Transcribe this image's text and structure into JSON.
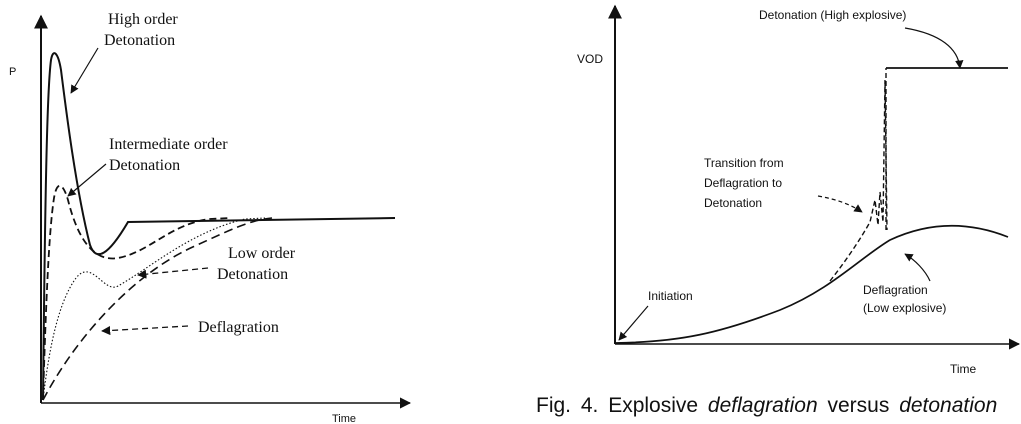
{
  "left_diagram": {
    "y_axis_label": "P",
    "x_axis_label": "Time",
    "curves": [
      {
        "id": "high",
        "label_lines": [
          "High order",
          "Detonation"
        ],
        "style": "solid"
      },
      {
        "id": "intermediate",
        "label_lines": [
          "Intermediate order",
          "Detonation"
        ],
        "style": "dashed"
      },
      {
        "id": "low",
        "label_lines": [
          "Low order",
          "Detonation"
        ],
        "style": "dotted"
      },
      {
        "id": "deflagration",
        "label_lines": [
          "Deflagration"
        ],
        "style": "dashed"
      }
    ]
  },
  "right_diagram": {
    "y_axis_label": "VOD",
    "x_axis_label": "Time",
    "annotations": {
      "detonation": "Detonation (High explosive)",
      "transition_lines": [
        "Transition from",
        "Deflagration to",
        "Detonation"
      ],
      "initiation": "Initiation",
      "deflagration_lines": [
        "Deflagration",
        "(Low explosive)"
      ]
    }
  },
  "caption": {
    "prefix": "Fig. 4. Explosive ",
    "term1": "deflagration",
    "middle": " versus ",
    "term2": "detonation"
  }
}
